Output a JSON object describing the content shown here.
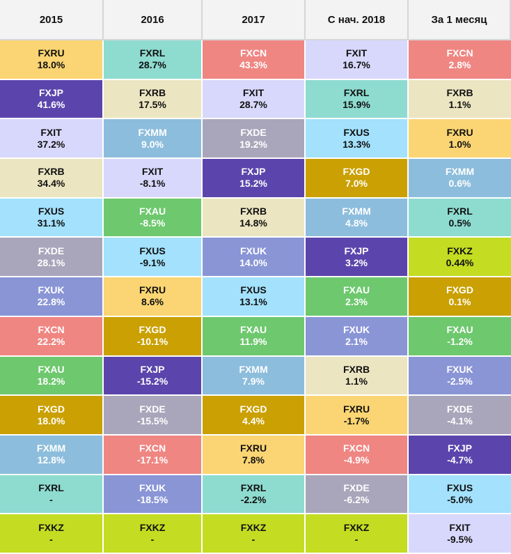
{
  "headers": [
    "2015",
    "2016",
    "2017",
    "С нач. 2018",
    "За 1 месяц"
  ],
  "colors": {
    "FXRU": "#fbd573",
    "FXJP": "#5b45ac",
    "FXIT": "#d8d8fc",
    "FXRB": "#ebe5c1",
    "FXUS": "#a3e1fd",
    "FXDE": "#a9a6bb",
    "FXUK": "#8a95d6",
    "FXCN": "#ef8682",
    "FXAU": "#6dc86e",
    "FXGD": "#caa002",
    "FXMM": "#8dbddc",
    "FXRL": "#8edbd0",
    "FXKZ": "#c4dc22"
  },
  "dark_text": [
    "FXJP",
    "FXDE",
    "FXUK",
    "FXCN",
    "FXAU",
    "FXGD",
    "FXMM"
  ],
  "columns": [
    [
      {
        "ticker": "FXRU",
        "value": "18.0%"
      },
      {
        "ticker": "FXJP",
        "value": "41.6%"
      },
      {
        "ticker": "FXIT",
        "value": "37.2%"
      },
      {
        "ticker": "FXRB",
        "value": "34.4%"
      },
      {
        "ticker": "FXUS",
        "value": "31.1%"
      },
      {
        "ticker": "FXDE",
        "value": "28.1%"
      },
      {
        "ticker": "FXUK",
        "value": "22.8%"
      },
      {
        "ticker": "FXCN",
        "value": "22.2%"
      },
      {
        "ticker": "FXAU",
        "value": "18.2%"
      },
      {
        "ticker": "FXGD",
        "value": "18.0%"
      },
      {
        "ticker": "FXMM",
        "value": "12.8%"
      },
      {
        "ticker": "FXRL",
        "value": "-"
      },
      {
        "ticker": "FXKZ",
        "value": "-"
      }
    ],
    [
      {
        "ticker": "FXRL",
        "value": "28.7%"
      },
      {
        "ticker": "FXRB",
        "value": "17.5%"
      },
      {
        "ticker": "FXMM",
        "value": "9.0%"
      },
      {
        "ticker": "FXIT",
        "value": "-8.1%"
      },
      {
        "ticker": "FXAU",
        "value": "-8.5%"
      },
      {
        "ticker": "FXUS",
        "value": "-9.1%"
      },
      {
        "ticker": "FXRU",
        "value": "8.6%"
      },
      {
        "ticker": "FXGD",
        "value": "-10.1%"
      },
      {
        "ticker": "FXJP",
        "value": "-15.2%"
      },
      {
        "ticker": "FXDE",
        "value": "-15.5%"
      },
      {
        "ticker": "FXCN",
        "value": "-17.1%"
      },
      {
        "ticker": "FXUK",
        "value": "-18.5%"
      },
      {
        "ticker": "FXKZ",
        "value": "-"
      }
    ],
    [
      {
        "ticker": "FXCN",
        "value": "43.3%"
      },
      {
        "ticker": "FXIT",
        "value": "28.7%"
      },
      {
        "ticker": "FXDE",
        "value": "19.2%"
      },
      {
        "ticker": "FXJP",
        "value": "15.2%"
      },
      {
        "ticker": "FXRB",
        "value": "14.8%"
      },
      {
        "ticker": "FXUK",
        "value": "14.0%"
      },
      {
        "ticker": "FXUS",
        "value": "13.1%"
      },
      {
        "ticker": "FXAU",
        "value": "11.9%"
      },
      {
        "ticker": "FXMM",
        "value": "7.9%"
      },
      {
        "ticker": "FXGD",
        "value": "4.4%"
      },
      {
        "ticker": "FXRU",
        "value": "7.8%"
      },
      {
        "ticker": "FXRL",
        "value": "-2.2%"
      },
      {
        "ticker": "FXKZ",
        "value": "-"
      }
    ],
    [
      {
        "ticker": "FXIT",
        "value": "16.7%"
      },
      {
        "ticker": "FXRL",
        "value": "15.9%"
      },
      {
        "ticker": "FXUS",
        "value": "13.3%"
      },
      {
        "ticker": "FXGD",
        "value": "7.0%"
      },
      {
        "ticker": "FXMM",
        "value": "4.8%"
      },
      {
        "ticker": "FXJP",
        "value": "3.2%"
      },
      {
        "ticker": "FXAU",
        "value": "2.3%"
      },
      {
        "ticker": "FXUK",
        "value": "2.1%"
      },
      {
        "ticker": "FXRB",
        "value": "1.1%"
      },
      {
        "ticker": "FXRU",
        "value": "-1.7%"
      },
      {
        "ticker": "FXCN",
        "value": "-4.9%"
      },
      {
        "ticker": "FXDE",
        "value": "-6.2%"
      },
      {
        "ticker": "FXKZ",
        "value": "-"
      }
    ],
    [
      {
        "ticker": "FXCN",
        "value": "2.8%"
      },
      {
        "ticker": "FXRB",
        "value": "1.1%"
      },
      {
        "ticker": "FXRU",
        "value": "1.0%"
      },
      {
        "ticker": "FXMM",
        "value": "0.6%"
      },
      {
        "ticker": "FXRL",
        "value": "0.5%"
      },
      {
        "ticker": "FXKZ",
        "value": "0.44%"
      },
      {
        "ticker": "FXGD",
        "value": "0.1%"
      },
      {
        "ticker": "FXAU",
        "value": "-1.2%"
      },
      {
        "ticker": "FXUK",
        "value": "-2.5%"
      },
      {
        "ticker": "FXDE",
        "value": "-4.1%"
      },
      {
        "ticker": "FXJP",
        "value": "-4.7%"
      },
      {
        "ticker": "FXUS",
        "value": "-5.0%"
      },
      {
        "ticker": "FXIT",
        "value": "-9.5%"
      }
    ]
  ]
}
